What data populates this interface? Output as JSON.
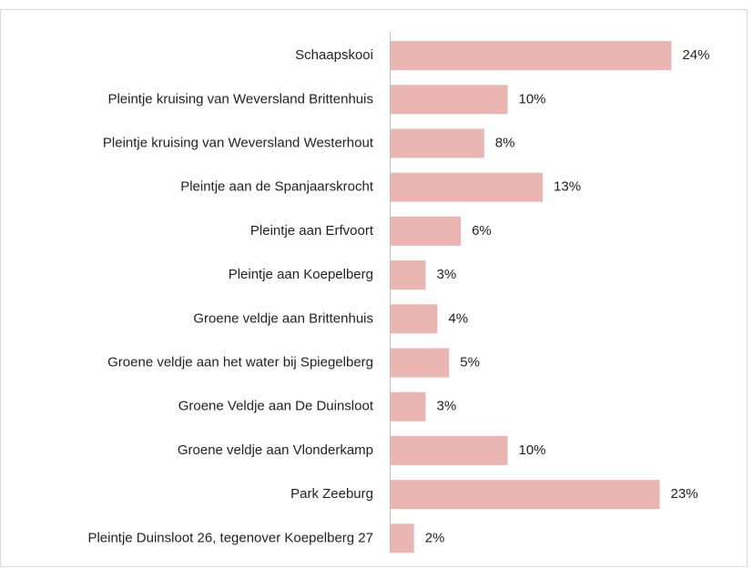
{
  "chart_data": {
    "type": "hbar",
    "categories": [
      "Schaapskooi",
      "Pleintje kruising van Weversland Brittenhuis",
      "Pleintje kruising van Weversland Westerhout",
      "Pleintje aan de Spanjaarskrocht",
      "Pleintje aan Erfvoort",
      "Pleintje aan Koepelberg",
      "Groene veldje aan Brittenhuis",
      "Groene veldje aan het water bij Spiegelberg",
      "Groene Veldje aan De Duinsloot",
      "Groene veldje aan Vlonderkamp",
      "Park Zeeburg",
      "Pleintje Duinsloot 26, tegenover Koepelberg 27"
    ],
    "values": [
      24,
      10,
      8,
      13,
      6,
      3,
      4,
      5,
      3,
      10,
      23,
      2
    ],
    "value_labels": [
      "24%",
      "10%",
      "8%",
      "13%",
      "6%",
      "3%",
      "4%",
      "5%",
      "3%",
      "10%",
      "23%",
      "2%"
    ],
    "color": "#ebb6b1"
  }
}
